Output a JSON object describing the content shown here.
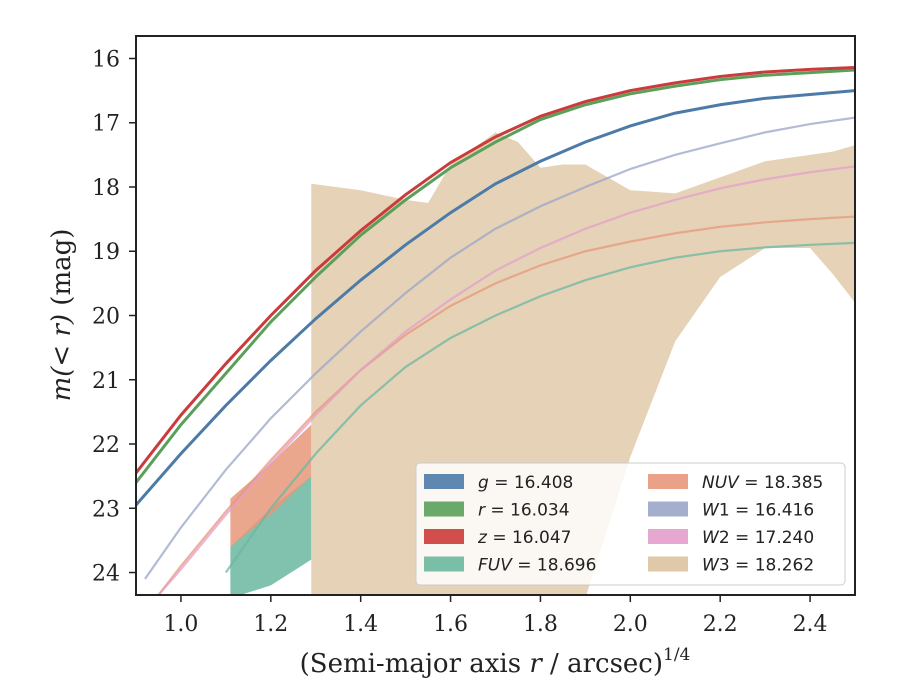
{
  "chart_data": {
    "type": "line",
    "title": "",
    "xlabel": "(Semi-major axis r / arcsec)",
    "xlabel_italic": "r",
    "xlabel_prefix": "(Semi-major axis ",
    "xlabel_suffix": " / arcsec)",
    "xlabel_exponent": "1/4",
    "ylabel_prefix": "m(< r)",
    "ylabel_suffix": " (mag)",
    "xlim": [
      0.9,
      2.5
    ],
    "ylim": [
      24.35,
      15.65
    ],
    "y_inverted": true,
    "xticks": [
      1.0,
      1.2,
      1.4,
      1.6,
      1.8,
      2.0,
      2.2,
      2.4
    ],
    "xtick_labels": [
      "1.0",
      "1.2",
      "1.4",
      "1.6",
      "1.8",
      "2.0",
      "2.2",
      "2.4"
    ],
    "yticks": [
      16,
      17,
      18,
      19,
      20,
      21,
      22,
      23,
      24
    ],
    "ytick_labels": [
      "16",
      "17",
      "18",
      "19",
      "20",
      "21",
      "22",
      "23",
      "24"
    ],
    "grid": false,
    "legend_position": "lower-right",
    "series": [
      {
        "key": "g",
        "label_var": "g",
        "label_value": "= 16.408",
        "italic": true,
        "color": "#4c7ba8",
        "x": [
          0.9,
          1.0,
          1.1,
          1.2,
          1.3,
          1.4,
          1.5,
          1.6,
          1.7,
          1.8,
          1.9,
          2.0,
          2.1,
          2.2,
          2.3,
          2.4,
          2.5
        ],
        "y": [
          22.95,
          22.15,
          21.4,
          20.7,
          20.05,
          19.45,
          18.9,
          18.4,
          17.95,
          17.6,
          17.3,
          17.05,
          16.85,
          16.72,
          16.62,
          16.56,
          16.5
        ]
      },
      {
        "key": "r",
        "label_var": "r",
        "label_value": "= 16.034",
        "italic": true,
        "color": "#5aa05a",
        "x": [
          0.9,
          1.0,
          1.1,
          1.2,
          1.3,
          1.4,
          1.5,
          1.6,
          1.7,
          1.8,
          1.9,
          2.0,
          2.1,
          2.2,
          2.3,
          2.4,
          2.5
        ],
        "y": [
          22.6,
          21.7,
          20.9,
          20.1,
          19.4,
          18.75,
          18.2,
          17.7,
          17.3,
          16.95,
          16.72,
          16.55,
          16.43,
          16.33,
          16.26,
          16.22,
          16.18
        ]
      },
      {
        "key": "z",
        "label_var": "z",
        "label_value": "= 16.047",
        "italic": true,
        "color": "#cc3b3b",
        "x": [
          0.9,
          1.0,
          1.1,
          1.2,
          1.3,
          1.4,
          1.5,
          1.6,
          1.7,
          1.8,
          1.9,
          2.0,
          2.1,
          2.2,
          2.3,
          2.4,
          2.5
        ],
        "y": [
          22.45,
          21.55,
          20.75,
          20.0,
          19.3,
          18.68,
          18.12,
          17.62,
          17.22,
          16.9,
          16.67,
          16.5,
          16.38,
          16.28,
          16.21,
          16.17,
          16.14
        ]
      },
      {
        "key": "FUV",
        "label_var": "FUV",
        "label_value": "= 18.696",
        "italic": true,
        "color": "#6bb7a0",
        "x": [
          1.1,
          1.2,
          1.3,
          1.4,
          1.5,
          1.6,
          1.7,
          1.8,
          1.9,
          2.0,
          2.1,
          2.2,
          2.3,
          2.4,
          2.5
        ],
        "y": [
          24.0,
          23.0,
          22.15,
          21.4,
          20.8,
          20.35,
          20.0,
          19.7,
          19.45,
          19.25,
          19.1,
          19.0,
          18.94,
          18.9,
          18.87
        ],
        "band_x": [
          1.11,
          1.2,
          1.29
        ],
        "band_lo": [
          23.6,
          23.0,
          22.5
        ],
        "band_hi": [
          24.4,
          24.2,
          23.8
        ]
      },
      {
        "key": "NUV",
        "label_var": "NUV",
        "label_value": "= 18.385",
        "italic": true,
        "color": "#e8977a",
        "x": [
          0.95,
          1.0,
          1.1,
          1.2,
          1.3,
          1.4,
          1.5,
          1.6,
          1.7,
          1.8,
          1.9,
          2.0,
          2.1,
          2.2,
          2.3,
          2.4,
          2.5
        ],
        "y": [
          24.35,
          23.9,
          23.05,
          22.25,
          21.5,
          20.85,
          20.3,
          19.85,
          19.5,
          19.22,
          19.0,
          18.85,
          18.72,
          18.62,
          18.55,
          18.5,
          18.46
        ],
        "band_x": [
          1.11,
          1.2,
          1.29
        ],
        "band_lo": [
          22.85,
          22.3,
          21.7
        ],
        "band_hi": [
          23.6,
          23.1,
          22.5
        ]
      },
      {
        "key": "W1",
        "label_var": "W",
        "label_sub": "1",
        "label_value": "= 16.416",
        "italic": true,
        "color": "#9aa6c9",
        "x": [
          0.92,
          1.0,
          1.1,
          1.2,
          1.3,
          1.4,
          1.5,
          1.6,
          1.7,
          1.8,
          1.9,
          2.0,
          2.1,
          2.2,
          2.3,
          2.4,
          2.5
        ],
        "y": [
          24.1,
          23.3,
          22.4,
          21.6,
          20.9,
          20.25,
          19.65,
          19.1,
          18.65,
          18.3,
          18.0,
          17.72,
          17.5,
          17.32,
          17.15,
          17.02,
          16.92
        ]
      },
      {
        "key": "W2",
        "label_var": "W",
        "label_sub": "2",
        "label_value": "= 17.240",
        "italic": true,
        "color": "#e39fcb",
        "x": [
          0.95,
          1.0,
          1.1,
          1.2,
          1.3,
          1.4,
          1.5,
          1.6,
          1.7,
          1.8,
          1.9,
          2.0,
          2.1,
          2.2,
          2.3,
          2.4,
          2.5
        ],
        "y": [
          24.35,
          23.95,
          23.1,
          22.3,
          21.55,
          20.85,
          20.25,
          19.75,
          19.3,
          18.95,
          18.65,
          18.4,
          18.2,
          18.02,
          17.88,
          17.77,
          17.68
        ]
      },
      {
        "key": "W3",
        "label_var": "W",
        "label_sub": "3",
        "label_value": "= 18.262",
        "italic": true,
        "color": "#dcc39f",
        "band_x": [
          1.29,
          1.4,
          1.5,
          1.55,
          1.6,
          1.65,
          1.7,
          1.75,
          1.8,
          1.85,
          1.9,
          2.0,
          2.1,
          2.2,
          2.3,
          2.4,
          2.45,
          2.5
        ],
        "band_hi": [
          17.95,
          18.05,
          18.2,
          18.25,
          17.65,
          17.4,
          17.15,
          17.3,
          17.7,
          17.65,
          17.65,
          18.05,
          18.1,
          17.85,
          17.6,
          17.5,
          17.45,
          17.35
        ],
        "band_lo": [
          24.4,
          24.4,
          24.4,
          24.4,
          24.4,
          24.4,
          24.4,
          24.4,
          24.4,
          24.4,
          24.4,
          22.2,
          20.4,
          19.4,
          18.95,
          18.95,
          19.35,
          19.8
        ]
      }
    ]
  }
}
